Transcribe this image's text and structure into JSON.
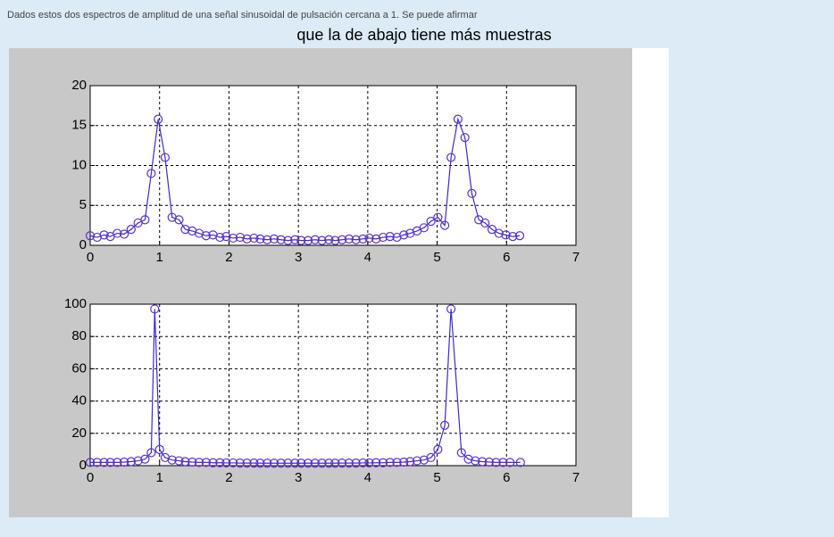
{
  "question": "Dados estos dos espectros de amplitud de una señal sinusoidal de pulsación cercana a 1. Se puede afirmar",
  "answer": "que la de abajo tiene más muestras",
  "chart_data": [
    {
      "type": "line",
      "color": "#3a2bd8",
      "marker_color": "#5b2fd6",
      "grid": true,
      "xlim": [
        0,
        7
      ],
      "xticks": [
        0,
        1,
        2,
        3,
        4,
        5,
        6,
        7
      ],
      "ylim": [
        0,
        20
      ],
      "yticks": [
        0,
        5,
        10,
        15,
        20
      ],
      "x": [
        0,
        0.1,
        0.2,
        0.29,
        0.39,
        0.49,
        0.59,
        0.69,
        0.79,
        0.88,
        0.98,
        1.08,
        1.18,
        1.28,
        1.37,
        1.47,
        1.57,
        1.67,
        1.77,
        1.87,
        1.96,
        2.06,
        2.16,
        2.26,
        2.36,
        2.45,
        2.55,
        2.65,
        2.75,
        2.85,
        2.95,
        3.04,
        3.14,
        3.24,
        3.34,
        3.44,
        3.53,
        3.63,
        3.73,
        3.83,
        3.93,
        4.02,
        4.12,
        4.22,
        4.32,
        4.42,
        4.52,
        4.61,
        4.71,
        4.81,
        4.91,
        5.01,
        5.11,
        5.2,
        5.3,
        5.4,
        5.5,
        5.6,
        5.69,
        5.79,
        5.89,
        5.99,
        6.09,
        6.19
      ],
      "values": [
        1.2,
        1.0,
        1.3,
        1.1,
        1.5,
        1.4,
        2.0,
        2.8,
        3.2,
        9,
        15.8,
        11,
        3.5,
        3.2,
        2.0,
        1.8,
        1.5,
        1.2,
        1.3,
        1.0,
        1.1,
        0.9,
        1.0,
        0.8,
        0.9,
        0.8,
        0.7,
        0.8,
        0.7,
        0.6,
        0.7,
        0.6,
        0.6,
        0.7,
        0.6,
        0.7,
        0.6,
        0.7,
        0.8,
        0.7,
        0.8,
        0.9,
        0.8,
        1.0,
        1.1,
        1.0,
        1.3,
        1.5,
        1.8,
        2.2,
        3.0,
        3.5,
        2.5,
        11,
        15.8,
        13.5,
        6.5,
        3.2,
        2.8,
        2.0,
        1.5,
        1.3,
        1.1,
        1.2
      ]
    },
    {
      "type": "line",
      "color": "#3a2bd8",
      "marker_color": "#5b2fd6",
      "grid": true,
      "xlim": [
        0,
        7
      ],
      "xticks": [
        0,
        1,
        2,
        3,
        4,
        5,
        6,
        7
      ],
      "ylim": [
        0,
        100
      ],
      "yticks": [
        0,
        20,
        40,
        60,
        80,
        100
      ],
      "x": [
        0,
        0.1,
        0.2,
        0.29,
        0.39,
        0.49,
        0.59,
        0.69,
        0.79,
        0.88,
        0.93,
        1.0,
        1.08,
        1.18,
        1.28,
        1.37,
        1.47,
        1.57,
        1.67,
        1.77,
        1.87,
        1.96,
        2.06,
        2.16,
        2.26,
        2.36,
        2.45,
        2.55,
        2.65,
        2.75,
        2.85,
        2.95,
        3.04,
        3.14,
        3.24,
        3.34,
        3.44,
        3.53,
        3.63,
        3.73,
        3.83,
        3.93,
        4.02,
        4.12,
        4.22,
        4.32,
        4.42,
        4.52,
        4.61,
        4.71,
        4.81,
        4.91,
        5.01,
        5.11,
        5.2,
        5.35,
        5.45,
        5.55,
        5.65,
        5.75,
        5.85,
        5.95,
        6.05,
        6.2
      ],
      "values": [
        2,
        2,
        2,
        2,
        2,
        2.2,
        2.5,
        3,
        4,
        8,
        97,
        10,
        5,
        3.5,
        3,
        2.5,
        2.2,
        2,
        2,
        1.8,
        1.8,
        1.7,
        1.7,
        1.6,
        1.6,
        1.6,
        1.5,
        1.5,
        1.5,
        1.5,
        1.5,
        1.5,
        1.5,
        1.5,
        1.5,
        1.5,
        1.5,
        1.5,
        1.6,
        1.6,
        1.6,
        1.7,
        1.7,
        1.8,
        1.8,
        2,
        2,
        2.2,
        2.5,
        3,
        3.5,
        5,
        10,
        25,
        97,
        8,
        4,
        3,
        2.5,
        2.2,
        2,
        2,
        2,
        2
      ]
    }
  ]
}
